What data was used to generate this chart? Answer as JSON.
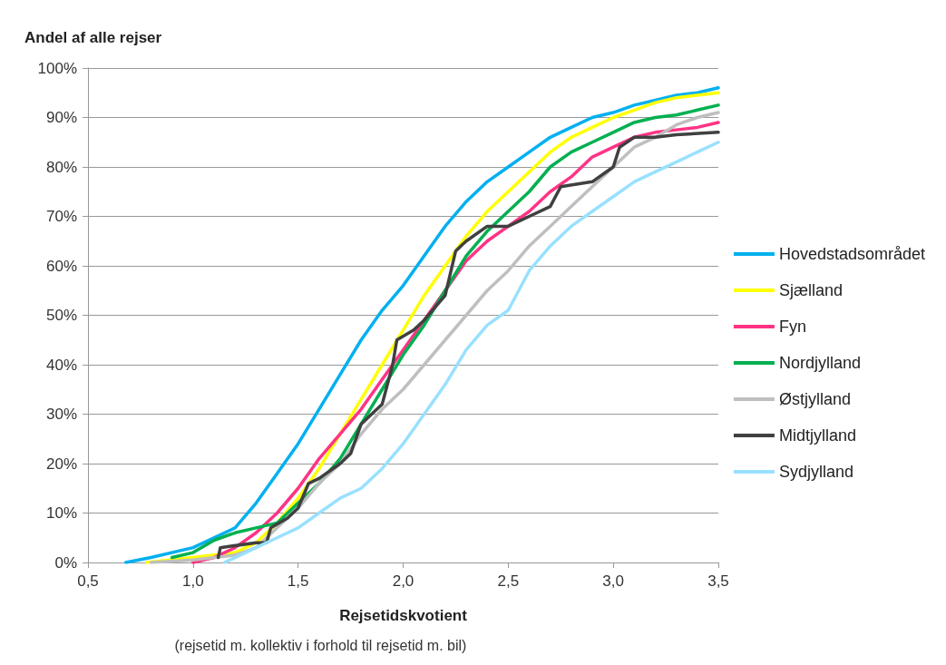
{
  "chart_data": {
    "type": "line",
    "ylabel": "Andel af alle rejser",
    "xlabel": "Rejsetidskvotient",
    "annotations": [
      "(rejsetid m. kollektiv i forhold til rejsetid m. bil)"
    ],
    "xlim": [
      0.5,
      3.5
    ],
    "xticks": [
      {
        "value": 0.5,
        "label": "0,5"
      },
      {
        "value": 1,
        "label": "1,0"
      },
      {
        "value": 1.5,
        "label": "1,5"
      },
      {
        "value": 2,
        "label": "2,0"
      },
      {
        "value": 2.5,
        "label": "2,5"
      },
      {
        "value": 3,
        "label": "3,0"
      },
      {
        "value": 3.5,
        "label": "3,5"
      }
    ],
    "ylim": [
      0,
      100
    ],
    "yticks": [
      {
        "value": 0,
        "label": "0%"
      },
      {
        "value": 10,
        "label": "10%"
      },
      {
        "value": 20,
        "label": "20%"
      },
      {
        "value": 30,
        "label": "30%"
      },
      {
        "value": 40,
        "label": "40%"
      },
      {
        "value": 50,
        "label": "50%"
      },
      {
        "value": 60,
        "label": "60%"
      },
      {
        "value": 70,
        "label": "70%"
      },
      {
        "value": 80,
        "label": "80%"
      },
      {
        "value": 90,
        "label": "90%"
      },
      {
        "value": 100,
        "label": "100%"
      }
    ],
    "grid": "y",
    "legend": "right",
    "marker": "none",
    "line_style": "solid",
    "series": [
      {
        "name": "Hovedstadsområdet",
        "color": "#00b0f0",
        "x": [
          0.68,
          0.8,
          1.0,
          1.2,
          1.3,
          1.4,
          1.5,
          1.6,
          1.7,
          1.8,
          1.9,
          2.0,
          2.1,
          2.2,
          2.3,
          2.4,
          2.5,
          2.6,
          2.7,
          2.8,
          2.9,
          3.0,
          3.1,
          3.2,
          3.3,
          3.4,
          3.5
        ],
        "values": [
          0,
          1,
          3,
          7,
          12,
          18,
          24,
          31,
          38,
          45,
          51,
          56,
          62,
          68,
          73,
          77,
          80,
          83,
          86,
          88,
          90,
          91,
          92.5,
          93.5,
          94.5,
          95,
          96
        ]
      },
      {
        "name": "Sjælland",
        "color": "#ffff00",
        "x": [
          0.78,
          1.0,
          1.2,
          1.3,
          1.4,
          1.5,
          1.6,
          1.7,
          1.8,
          1.9,
          2.0,
          2.1,
          2.2,
          2.3,
          2.4,
          2.5,
          2.6,
          2.7,
          2.8,
          2.9,
          3.0,
          3.1,
          3.2,
          3.3,
          3.4,
          3.5
        ],
        "values": [
          0,
          1,
          2,
          4,
          8,
          13,
          19,
          26,
          33,
          40,
          47,
          54,
          60,
          66,
          71,
          75,
          79,
          83,
          86,
          88,
          90,
          91.5,
          93,
          94,
          94.5,
          95
        ]
      },
      {
        "name": "Fyn",
        "color": "#ff3385",
        "x": [
          1.0,
          1.1,
          1.2,
          1.3,
          1.4,
          1.5,
          1.6,
          1.7,
          1.8,
          1.9,
          2.0,
          2.1,
          2.2,
          2.3,
          2.4,
          2.5,
          2.6,
          2.7,
          2.8,
          2.9,
          3.0,
          3.1,
          3.2,
          3.3,
          3.4,
          3.5
        ],
        "values": [
          0,
          1,
          3,
          6,
          10,
          15,
          21,
          26,
          31,
          37,
          43,
          49,
          55,
          61,
          65,
          68,
          71,
          75,
          78,
          82,
          84,
          86,
          87,
          87.5,
          88,
          89
        ]
      },
      {
        "name": "Nordjylland",
        "color": "#00b050",
        "x": [
          0.9,
          1.0,
          1.1,
          1.2,
          1.3,
          1.4,
          1.5,
          1.6,
          1.7,
          1.8,
          1.9,
          2.0,
          2.1,
          2.2,
          2.3,
          2.4,
          2.5,
          2.6,
          2.7,
          2.8,
          2.9,
          3.0,
          3.1,
          3.2,
          3.3,
          3.4,
          3.5
        ],
        "values": [
          1,
          2,
          4.5,
          6,
          7,
          8,
          12,
          16,
          21,
          28,
          35,
          42,
          48,
          55,
          62,
          67,
          71,
          75,
          80,
          83,
          85,
          87,
          89,
          90,
          90.5,
          91.5,
          92.5
        ]
      },
      {
        "name": "Østjylland",
        "color": "#bfbfbf",
        "x": [
          0.8,
          1.0,
          1.2,
          1.3,
          1.4,
          1.5,
          1.6,
          1.7,
          1.8,
          1.9,
          2.0,
          2.1,
          2.2,
          2.3,
          2.4,
          2.5,
          2.6,
          2.7,
          2.8,
          2.9,
          3.0,
          3.1,
          3.2,
          3.3,
          3.4,
          3.5
        ],
        "values": [
          0,
          0.5,
          1.5,
          3,
          7,
          11,
          16,
          20,
          26,
          31,
          35,
          40,
          45,
          50,
          55,
          59,
          64,
          68,
          72,
          76,
          80,
          84,
          86,
          88.5,
          90,
          91
        ]
      },
      {
        "name": "Midtjylland",
        "color": "#404040",
        "x": [
          1.12,
          1.13,
          1.3,
          1.35,
          1.37,
          1.45,
          1.5,
          1.55,
          1.6,
          1.7,
          1.75,
          1.8,
          1.9,
          1.95,
          1.97,
          2.05,
          2.1,
          2.2,
          2.25,
          2.3,
          2.4,
          2.5,
          2.6,
          2.7,
          2.75,
          2.9,
          3.0,
          3.03,
          3.1,
          3.2,
          3.3,
          3.5
        ],
        "values": [
          1,
          3,
          4,
          4,
          7,
          9,
          11,
          16,
          17,
          20,
          22,
          28,
          32,
          40,
          45,
          47,
          49,
          54,
          63,
          65,
          68,
          68,
          70,
          72,
          76,
          77,
          80,
          84,
          86,
          86,
          86.5,
          87
        ]
      },
      {
        "name": "Sydjylland",
        "color": "#99e0ff",
        "x": [
          1.15,
          1.3,
          1.4,
          1.5,
          1.6,
          1.7,
          1.8,
          1.9,
          2.0,
          2.1,
          2.2,
          2.3,
          2.4,
          2.5,
          2.55,
          2.6,
          2.7,
          2.8,
          2.9,
          3.0,
          3.1,
          3.2,
          3.3,
          3.4,
          3.5
        ],
        "values": [
          0,
          3,
          5,
          7,
          10,
          13,
          15,
          19,
          24,
          30,
          36,
          43,
          48,
          51,
          55,
          59,
          64,
          68,
          71,
          74,
          77,
          79,
          81,
          83,
          85
        ]
      }
    ]
  }
}
